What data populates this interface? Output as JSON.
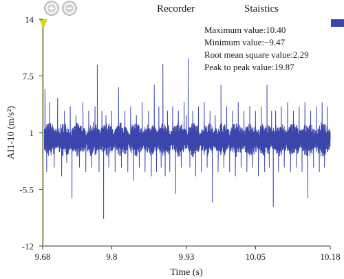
{
  "toolbar": {
    "zoom_in_icon": "zoom-in-plus-icon",
    "zoom_out_icon": "zoom-out-minus-icon",
    "recorder_label": "Recorder",
    "statistics_label": "Staistics"
  },
  "stats": {
    "maximum": "Maximum value:10.40",
    "minimum": "Minimum value:−9.47",
    "rms": "Root mean square value:2.29",
    "peak_to_peak": "Peak to peak value:19.87"
  },
  "colors": {
    "signal": "#3b46ad",
    "cursor": "#d9cf1e",
    "axis": "#333333"
  },
  "chart_data": {
    "type": "line",
    "title": "",
    "xlabel": "Time (s)",
    "ylabel": "AI1-10 (m/s²)",
    "xlim": [
      9.68,
      10.18
    ],
    "ylim": [
      -12,
      14
    ],
    "x_ticks": [
      {
        "value": 9.68,
        "label": "9.68"
      },
      {
        "value": 9.8,
        "label": "9.8"
      },
      {
        "value": 9.93,
        "label": "9.93"
      },
      {
        "value": 10.05,
        "label": "10.05"
      },
      {
        "value": 10.18,
        "label": "10.18"
      }
    ],
    "y_ticks": [
      {
        "value": 14,
        "label": "14"
      },
      {
        "value": 7.5,
        "label": "7.5"
      },
      {
        "value": 1,
        "label": "1"
      },
      {
        "value": -5.5,
        "label": "-5.5"
      },
      {
        "value": -12,
        "label": "-12"
      }
    ],
    "grid": false,
    "cursor_x": 9.68,
    "series": [
      {
        "color": "#3b46ad",
        "mean": 0.2,
        "oscillation_amplitude": 2.0,
        "points": [
          [
            9.68,
            0.2
          ],
          [
            9.684,
            6.0
          ],
          [
            9.687,
            -3.5
          ],
          [
            9.692,
            4.5
          ],
          [
            9.7,
            -3.0
          ],
          [
            9.706,
            5.0
          ],
          [
            9.713,
            -4.0
          ],
          [
            9.718,
            3.5
          ],
          [
            9.722,
            -2.5
          ],
          [
            9.728,
            4.0
          ],
          [
            9.731,
            -6.5
          ],
          [
            9.738,
            3.0
          ],
          [
            9.744,
            -3.0
          ],
          [
            9.75,
            4.5
          ],
          [
            9.755,
            -3.5
          ],
          [
            9.76,
            3.5
          ],
          [
            9.765,
            -3.0
          ],
          [
            9.771,
            4.0
          ],
          [
            9.775,
            8.8
          ],
          [
            9.778,
            -3.5
          ],
          [
            9.783,
            3.5
          ],
          [
            9.786,
            -8.9
          ],
          [
            9.79,
            3.0
          ],
          [
            9.795,
            -3.0
          ],
          [
            9.8,
            3.5
          ],
          [
            9.806,
            -3.5
          ],
          [
            9.812,
            6.2
          ],
          [
            9.817,
            -3.0
          ],
          [
            9.823,
            3.5
          ],
          [
            9.828,
            -3.5
          ],
          [
            9.833,
            4.0
          ],
          [
            9.838,
            -4.5
          ],
          [
            9.843,
            3.0
          ],
          [
            9.848,
            -3.0
          ],
          [
            9.853,
            4.5
          ],
          [
            9.858,
            -3.5
          ],
          [
            9.864,
            3.5
          ],
          [
            9.869,
            -4.0
          ],
          [
            9.874,
            6.5
          ],
          [
            9.878,
            -3.5
          ],
          [
            9.882,
            4.0
          ],
          [
            9.886,
            -3.0
          ],
          [
            9.889,
            8.9
          ],
          [
            9.893,
            -4.0
          ],
          [
            9.897,
            3.5
          ],
          [
            9.901,
            -3.5
          ],
          [
            9.906,
            4.0
          ],
          [
            9.911,
            -6.0
          ],
          [
            9.916,
            3.5
          ],
          [
            9.921,
            -3.0
          ],
          [
            9.926,
            4.5
          ],
          [
            9.93,
            3.0
          ],
          [
            9.933,
            9.5
          ],
          [
            9.936,
            -3.0
          ],
          [
            9.941,
            3.5
          ],
          [
            9.946,
            -4.0
          ],
          [
            9.951,
            4.0
          ],
          [
            9.956,
            -3.5
          ],
          [
            9.961,
            4.5
          ],
          [
            9.966,
            -3.0
          ],
          [
            9.971,
            3.5
          ],
          [
            9.975,
            -7.0
          ],
          [
            9.98,
            3.0
          ],
          [
            9.985,
            -3.5
          ],
          [
            9.99,
            6.5
          ],
          [
            9.995,
            -3.0
          ],
          [
            10.0,
            4.0
          ],
          [
            10.005,
            -3.5
          ],
          [
            10.01,
            3.5
          ],
          [
            10.015,
            -4.0
          ],
          [
            10.02,
            4.5
          ],
          [
            10.025,
            -3.0
          ],
          [
            10.03,
            3.5
          ],
          [
            10.035,
            -3.5
          ],
          [
            10.04,
            4.0
          ],
          [
            10.045,
            -3.0
          ],
          [
            10.05,
            3.5
          ],
          [
            10.055,
            -4.0
          ],
          [
            10.06,
            4.0
          ],
          [
            10.066,
            -3.5
          ],
          [
            10.07,
            6.5
          ],
          [
            10.074,
            -3.0
          ],
          [
            10.078,
            3.5
          ],
          [
            10.081,
            -7.5
          ],
          [
            10.085,
            3.5
          ],
          [
            10.09,
            -3.5
          ],
          [
            10.095,
            4.0
          ],
          [
            10.1,
            -3.0
          ],
          [
            10.106,
            4.5
          ],
          [
            10.111,
            -3.5
          ],
          [
            10.116,
            3.5
          ],
          [
            10.121,
            -3.0
          ],
          [
            10.126,
            4.0
          ],
          [
            10.131,
            -3.5
          ],
          [
            10.136,
            4.5
          ],
          [
            10.141,
            -6.5
          ],
          [
            10.146,
            3.5
          ],
          [
            10.151,
            -3.0
          ],
          [
            10.156,
            4.0
          ],
          [
            10.161,
            -3.5
          ],
          [
            10.166,
            4.5
          ],
          [
            10.17,
            -3.0
          ],
          [
            10.175,
            4.0
          ],
          [
            10.18,
            0.2
          ]
        ]
      }
    ]
  }
}
